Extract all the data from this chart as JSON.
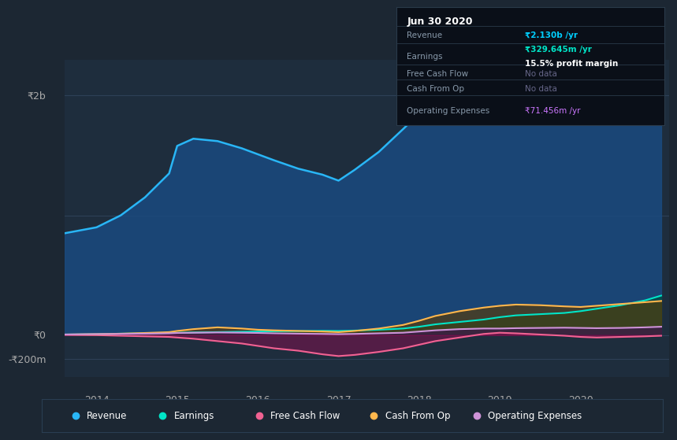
{
  "background_color": "#1c2733",
  "chart_bg_color": "#1e2d3d",
  "grid_color": "#2a3d52",
  "title_box": {
    "date": "Jun 30 2020",
    "rows": [
      {
        "label": "Revenue",
        "value": "₹2.130b /yr",
        "value_color": "#00cfff",
        "sub": null
      },
      {
        "label": "Earnings",
        "value": "₹329.645m /yr",
        "value_color": "#00e5c8",
        "sub": "15.5% profit margin"
      },
      {
        "label": "Free Cash Flow",
        "value": "No data",
        "value_color": "#666688",
        "sub": null
      },
      {
        "label": "Cash From Op",
        "value": "No data",
        "value_color": "#666688",
        "sub": null
      },
      {
        "label": "Operating Expenses",
        "value": "₹71.456m /yr",
        "value_color": "#cc77ff",
        "sub": null
      }
    ]
  },
  "ylabel_2b": "₹2b",
  "ylabel_0": "₹0",
  "ylabel_neg200": "-₹200m",
  "ylim": [
    -350000000,
    2300000000
  ],
  "xlim": [
    2013.6,
    2021.1
  ],
  "xticks": [
    2014,
    2015,
    2016,
    2017,
    2018,
    2019,
    2020
  ],
  "legend_items": [
    {
      "label": "Revenue",
      "color": "#29b6f6"
    },
    {
      "label": "Earnings",
      "color": "#00e5c8"
    },
    {
      "label": "Free Cash Flow",
      "color": "#f06292"
    },
    {
      "label": "Cash From Op",
      "color": "#ffb74d"
    },
    {
      "label": "Operating Expenses",
      "color": "#ce93d8"
    }
  ],
  "series": {
    "x": [
      2013.6,
      2014.0,
      2014.3,
      2014.6,
      2014.9,
      2015.0,
      2015.2,
      2015.5,
      2015.8,
      2016.0,
      2016.2,
      2016.5,
      2016.8,
      2017.0,
      2017.2,
      2017.5,
      2017.8,
      2018.0,
      2018.2,
      2018.5,
      2018.8,
      2019.0,
      2019.2,
      2019.5,
      2019.8,
      2020.0,
      2020.2,
      2020.5,
      2020.8,
      2021.0
    ],
    "revenue": [
      850000000,
      900000000,
      1000000000,
      1150000000,
      1350000000,
      1580000000,
      1640000000,
      1620000000,
      1560000000,
      1510000000,
      1460000000,
      1390000000,
      1340000000,
      1290000000,
      1380000000,
      1530000000,
      1720000000,
      1850000000,
      1820000000,
      1790000000,
      1840000000,
      1940000000,
      2010000000,
      2000000000,
      1970000000,
      1970000000,
      1960000000,
      1990000000,
      2050000000,
      2130000000
    ],
    "earnings": [
      5000000,
      8000000,
      12000000,
      15000000,
      18000000,
      20000000,
      22000000,
      25000000,
      28000000,
      30000000,
      32000000,
      34000000,
      36000000,
      35000000,
      38000000,
      45000000,
      55000000,
      70000000,
      90000000,
      110000000,
      130000000,
      150000000,
      165000000,
      175000000,
      185000000,
      200000000,
      220000000,
      250000000,
      290000000,
      330000000
    ],
    "free_cash_flow": [
      2000000,
      0,
      -5000000,
      -10000000,
      -15000000,
      -20000000,
      -30000000,
      -50000000,
      -70000000,
      -90000000,
      -110000000,
      -130000000,
      -160000000,
      -175000000,
      -165000000,
      -140000000,
      -110000000,
      -80000000,
      -50000000,
      -20000000,
      10000000,
      20000000,
      15000000,
      5000000,
      -5000000,
      -15000000,
      -20000000,
      -15000000,
      -10000000,
      -5000000
    ],
    "cash_from_op": [
      5000000,
      8000000,
      12000000,
      18000000,
      25000000,
      35000000,
      50000000,
      65000000,
      55000000,
      45000000,
      40000000,
      35000000,
      30000000,
      25000000,
      35000000,
      55000000,
      85000000,
      120000000,
      160000000,
      200000000,
      230000000,
      245000000,
      255000000,
      250000000,
      240000000,
      235000000,
      245000000,
      260000000,
      275000000,
      285000000
    ],
    "op_expenses": [
      5000000,
      8000000,
      10000000,
      12000000,
      15000000,
      18000000,
      20000000,
      22000000,
      20000000,
      18000000,
      15000000,
      12000000,
      10000000,
      8000000,
      10000000,
      15000000,
      20000000,
      30000000,
      40000000,
      50000000,
      55000000,
      55000000,
      58000000,
      60000000,
      62000000,
      60000000,
      58000000,
      60000000,
      65000000,
      70000000
    ]
  }
}
